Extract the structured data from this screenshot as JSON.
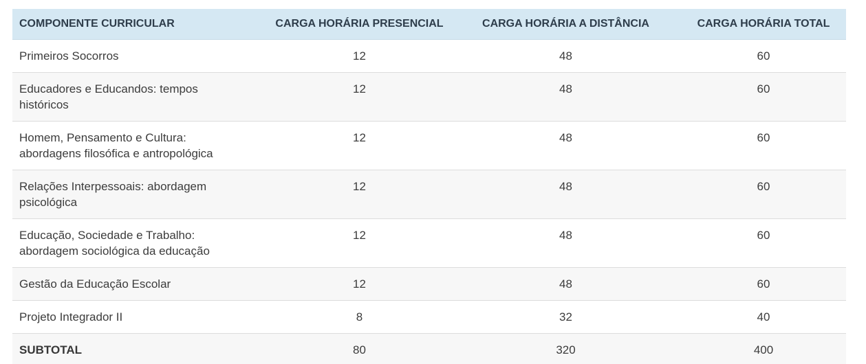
{
  "colors": {
    "header_bg": "#d5e8f3",
    "header_text": "#2e3d4b",
    "header_border": "#c6dbe7",
    "stripe_bg": "#f7f7f7",
    "row_border": "#dcdcdc",
    "body_text": "#3c3c3c",
    "page_bg": "#ffffff"
  },
  "table": {
    "columns": [
      {
        "label": "COMPONENTE CURRICULAR"
      },
      {
        "label": "CARGA HORÁRIA PRESENCIAL"
      },
      {
        "label": "CARGA HORÁRIA A DISTÂNCIA"
      },
      {
        "label": "CARGA HORÁRIA TOTAL"
      }
    ],
    "rows": [
      {
        "component": "Primeiros Socorros",
        "presencial": "12",
        "distancia": "48",
        "total": "60",
        "subtotal": false
      },
      {
        "component": "Educadores e Educandos: tempos\nhistóricos",
        "presencial": "12",
        "distancia": "48",
        "total": "60",
        "subtotal": false
      },
      {
        "component": "Homem, Pensamento e Cultura:\nabordagens filosófica e antropológica",
        "presencial": "12",
        "distancia": "48",
        "total": "60",
        "subtotal": false
      },
      {
        "component": "Relações Interpessoais: abordagem\npsicológica",
        "presencial": "12",
        "distancia": "48",
        "total": "60",
        "subtotal": false
      },
      {
        "component": "Educação, Sociedade e Trabalho:\nabordagem sociológica da educação",
        "presencial": "12",
        "distancia": "48",
        "total": "60",
        "subtotal": false
      },
      {
        "component": "Gestão da Educação Escolar",
        "presencial": "12",
        "distancia": "48",
        "total": "60",
        "subtotal": false
      },
      {
        "component": "Projeto Integrador II",
        "presencial": "8",
        "distancia": "32",
        "total": "40",
        "subtotal": false
      },
      {
        "component": "SUBTOTAL",
        "presencial": "80",
        "distancia": "320",
        "total": "400",
        "subtotal": true
      }
    ]
  }
}
